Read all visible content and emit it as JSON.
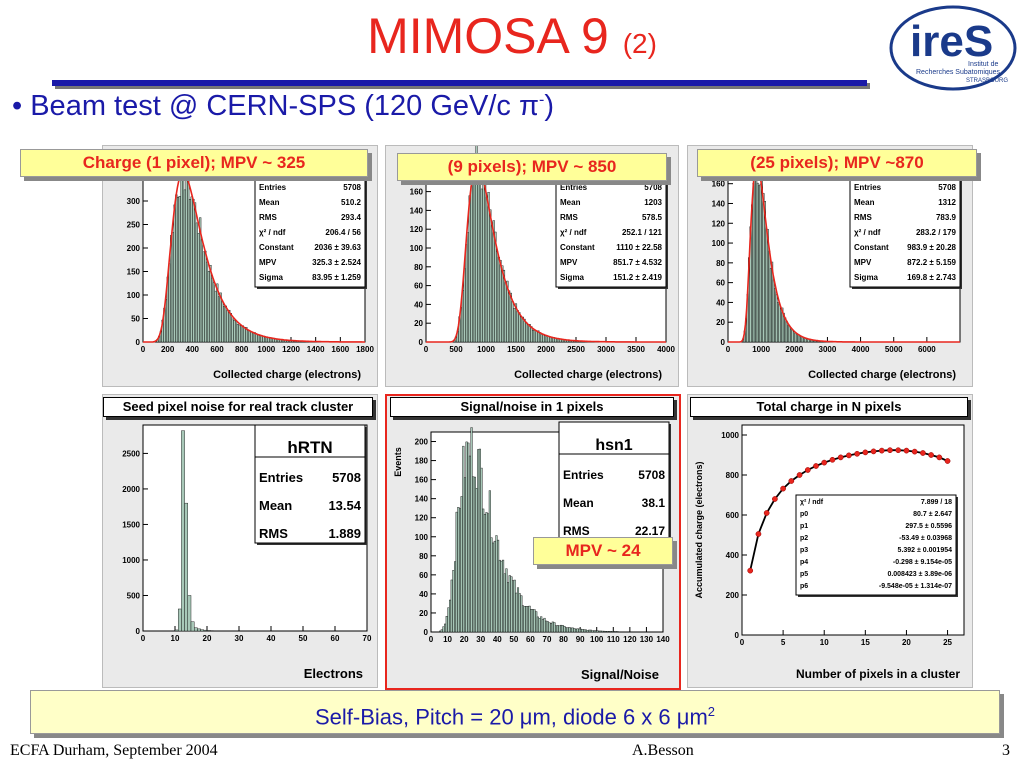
{
  "slide": {
    "title": "MIMOSA 9",
    "title_suffix": "(2)",
    "bullet_prefix": "Beam test @ CERN-SPS (120 GeV/c ",
    "bullet_pi": "π",
    "bullet_sup": "-",
    "bullet_suffix": ")",
    "bottom_text": "Self-Bias, Pitch = 20 μm, diode 6 x 6 μm",
    "bottom_sup": "2",
    "footer_left": "ECFA Durham, September 2004",
    "footer_center": "A.Besson",
    "footer_right": "3",
    "logo": {
      "name": "ireS",
      "line1": "Institut de",
      "line2": "Recherches Subatomiques",
      "line3": "STRASBOURG",
      "color": "#1a3a8a"
    }
  },
  "callouts": {
    "c1": "Charge (1 pixel); MPV ~ 325",
    "c2": "(9 pixels); MPV ~ 850",
    "c3": "(25 pixels); MPV ~870",
    "c4": "MPV ~ 24"
  },
  "colors": {
    "hist_fill": "#a8c8b8",
    "fit_line": "#e8261e",
    "accent": "#e8261e",
    "text_blue": "#1a1aa8",
    "callout_bg": "#ffff99"
  },
  "chart_data": [
    {
      "id": "p1",
      "type": "bar",
      "xlabel": "Collected charge (electrons)",
      "xlim": [
        0,
        1800
      ],
      "ylim": [
        0,
        400
      ],
      "xticks": [
        0,
        200,
        400,
        600,
        800,
        1000,
        1200,
        1400,
        1600,
        1800
      ],
      "yticks": [
        0,
        50,
        100,
        150,
        200,
        250,
        300,
        350
      ],
      "mpv": 325,
      "sigma": 84,
      "fit": "landau",
      "stats": [
        [
          "Entries",
          "5708"
        ],
        [
          "Mean",
          "510.2"
        ],
        [
          "RMS",
          "293.4"
        ],
        [
          "χ² / ndf",
          "206.4 / 56"
        ],
        [
          "Constant",
          "2036 ± 39.63"
        ],
        [
          "MPV",
          "325.3 ± 2.524"
        ],
        [
          "Sigma",
          "83.95 ± 1.259"
        ]
      ]
    },
    {
      "id": "p2",
      "type": "bar",
      "xlabel": "Collected charge (electrons)",
      "xlim": [
        0,
        4000
      ],
      "ylim": [
        0,
        200
      ],
      "xticks": [
        0,
        500,
        1000,
        1500,
        2000,
        2500,
        3000,
        3500,
        4000
      ],
      "yticks": [
        0,
        20,
        40,
        60,
        80,
        100,
        120,
        140,
        160,
        180
      ],
      "mpv": 852,
      "sigma": 151,
      "fit": "landau",
      "stats": [
        [
          "Entries",
          "5708"
        ],
        [
          "Mean",
          "1203"
        ],
        [
          "RMS",
          "578.5"
        ],
        [
          "χ² / ndf",
          "252.1 / 121"
        ],
        [
          "Constant",
          "1110 ± 22.58"
        ],
        [
          "MPV",
          "851.7 ± 4.532"
        ],
        [
          "Sigma",
          "151.2 ± 2.419"
        ]
      ]
    },
    {
      "id": "p3",
      "type": "bar",
      "xlabel": "Collected charge (electrons)",
      "xlim": [
        0,
        7000
      ],
      "ylim": [
        0,
        190
      ],
      "xticks": [
        0,
        1000,
        2000,
        3000,
        4000,
        5000,
        6000
      ],
      "yticks": [
        0,
        20,
        40,
        60,
        80,
        100,
        120,
        140,
        160,
        180
      ],
      "mpv": 872,
      "sigma": 170,
      "fit": "landau",
      "stats": [
        [
          "Entries",
          "5708"
        ],
        [
          "Mean",
          "1312"
        ],
        [
          "RMS",
          "783.9"
        ],
        [
          "χ² / ndf",
          "283.2 / 179"
        ],
        [
          "Constant",
          "983.9 ± 20.28"
        ],
        [
          "MPV",
          "872.2 ± 5.159"
        ],
        [
          "Sigma",
          "169.8 ± 2.743"
        ]
      ]
    },
    {
      "id": "p4",
      "type": "bar",
      "title": "Seed pixel noise for real track cluster",
      "xlabel": "Electrons",
      "xlim": [
        0,
        70
      ],
      "ylim": [
        0,
        2900
      ],
      "xticks": [
        0,
        10,
        20,
        30,
        40,
        50,
        60,
        70
      ],
      "yticks": [
        0,
        500,
        1000,
        1500,
        2000,
        2500
      ],
      "bins": [
        [
          10,
          15
        ],
        [
          11,
          310
        ],
        [
          12,
          2820
        ],
        [
          13,
          1800
        ],
        [
          14,
          500
        ],
        [
          15,
          130
        ],
        [
          16,
          45
        ],
        [
          17,
          30
        ],
        [
          18,
          18
        ],
        [
          19,
          12
        ],
        [
          20,
          8
        ],
        [
          21,
          5
        ],
        [
          22,
          3
        ]
      ],
      "box_title": "hRTN",
      "stats": [
        [
          "Entries",
          "5708"
        ],
        [
          "Mean",
          "13.54"
        ],
        [
          "RMS",
          "1.889"
        ]
      ]
    },
    {
      "id": "p5",
      "type": "bar",
      "title": "Signal/noise in 1 pixels",
      "xlabel": "Signal/Noise",
      "ylabel": "Events",
      "xlim": [
        0,
        140
      ],
      "ylim": [
        0,
        210
      ],
      "xticks": [
        0,
        10,
        20,
        30,
        40,
        50,
        60,
        70,
        80,
        90,
        100,
        110,
        120,
        130,
        140
      ],
      "yticks": [
        0,
        20,
        40,
        60,
        80,
        100,
        120,
        140,
        160,
        180,
        200
      ],
      "mpv": 24,
      "sigma": 7,
      "box_title": "hsn1",
      "stats": [
        [
          "Entries",
          "5708"
        ],
        [
          "Mean",
          "38.1"
        ],
        [
          "RMS",
          "22.17"
        ]
      ]
    },
    {
      "id": "p6",
      "type": "scatter",
      "title": "Total charge in N pixels",
      "xlabel": "Number of pixels in a cluster",
      "ylabel": "Accumulated charge (electrons)",
      "xlim": [
        0,
        27
      ],
      "ylim": [
        0,
        1050
      ],
      "xticks": [
        0,
        5,
        10,
        15,
        20,
        25
      ],
      "yticks": [
        0,
        200,
        400,
        600,
        800,
        1000
      ],
      "x": [
        1,
        2,
        3,
        4,
        5,
        6,
        7,
        8,
        9,
        10,
        11,
        12,
        13,
        14,
        15,
        16,
        17,
        18,
        19,
        20,
        21,
        22,
        23,
        24,
        25
      ],
      "y": [
        322,
        505,
        610,
        680,
        732,
        770,
        800,
        825,
        845,
        862,
        876,
        888,
        898,
        906,
        913,
        918,
        922,
        924,
        924,
        922,
        917,
        910,
        900,
        888,
        870
      ],
      "fit_stats": [
        [
          "χ² / ndf",
          "7.899 / 18"
        ],
        [
          "p0",
          "80.7 ± 2.647"
        ],
        [
          "p1",
          "297.5 ± 0.5596"
        ],
        [
          "p2",
          "-53.49 ± 0.03968"
        ],
        [
          "p3",
          "5.392 ± 0.001954"
        ],
        [
          "p4",
          "-0.298 ± 9.154e-05"
        ],
        [
          "p5",
          "0.008423 ± 3.89e-06"
        ],
        [
          "p6",
          "-9.548e-05 ± 1.314e-07"
        ]
      ]
    }
  ]
}
